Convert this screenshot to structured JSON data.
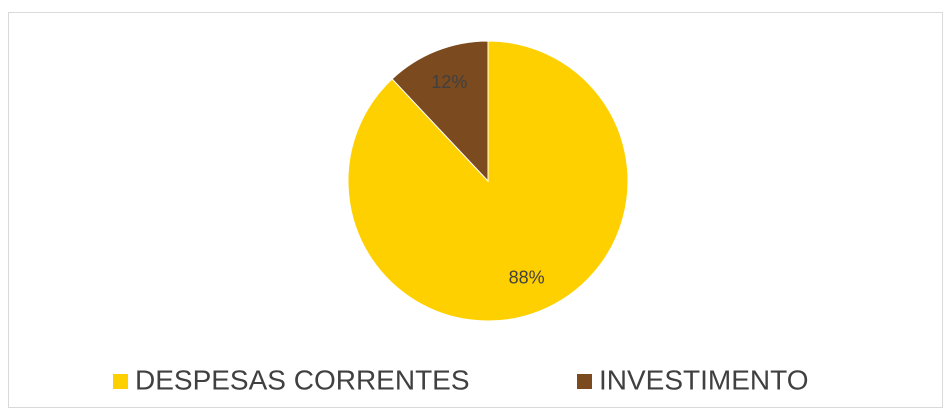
{
  "chart_data": {
    "type": "pie",
    "categories": [
      "DESPESAS CORRENTES",
      "INVESTIMENTO"
    ],
    "values": [
      88,
      12
    ],
    "value_labels": [
      "88%",
      "12%"
    ],
    "colors": [
      "#ffd000",
      "#7b4a1e"
    ]
  }
}
